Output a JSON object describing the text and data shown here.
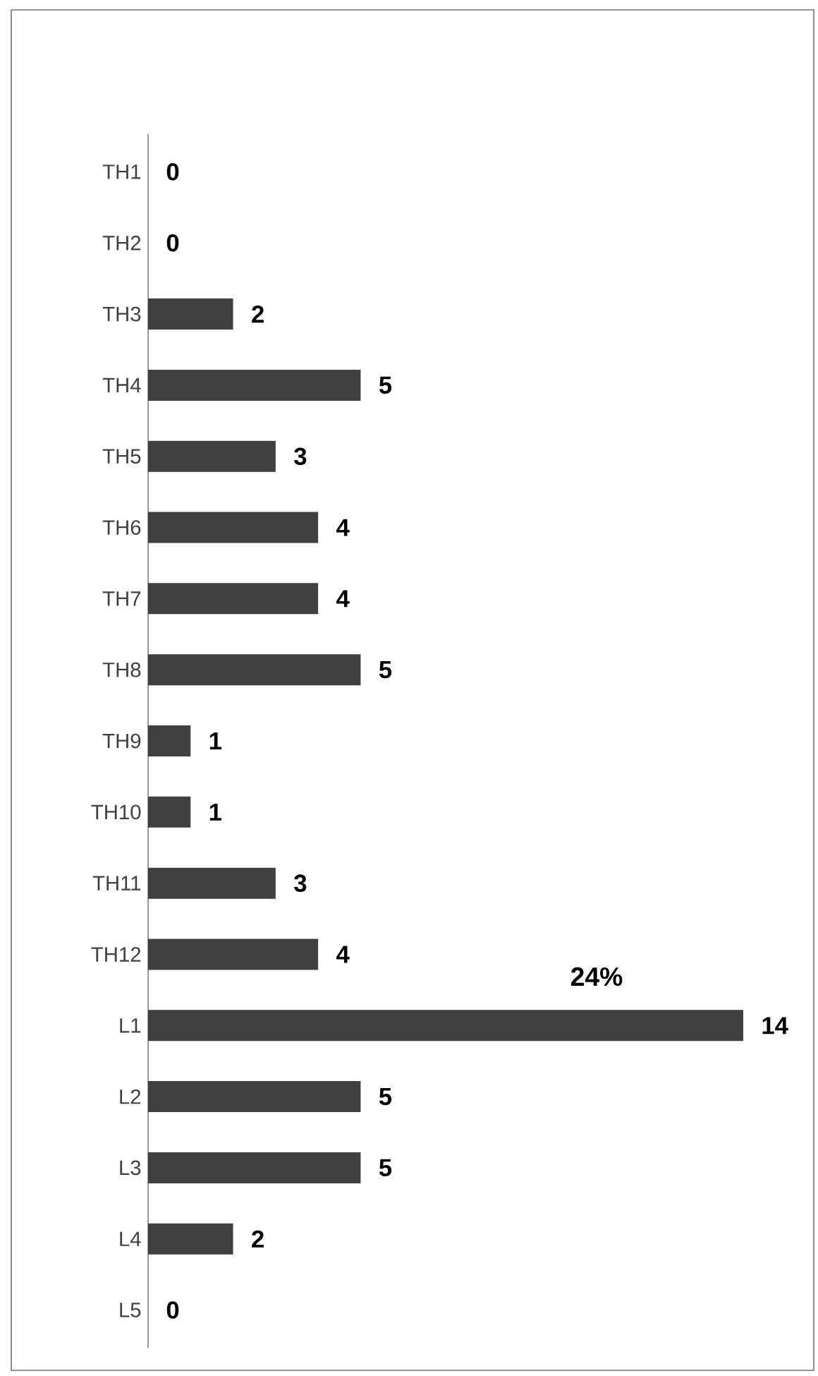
{
  "chart_data": {
    "type": "bar",
    "orientation": "horizontal",
    "categories": [
      "TH1",
      "TH2",
      "TH3",
      "TH4",
      "TH5",
      "TH6",
      "TH7",
      "TH8",
      "TH9",
      "TH10",
      "TH11",
      "TH12",
      "L1",
      "L2",
      "L3",
      "L4",
      "L5"
    ],
    "values": [
      0,
      0,
      2,
      5,
      3,
      4,
      4,
      5,
      1,
      1,
      3,
      4,
      14,
      5,
      5,
      2,
      0
    ],
    "color": "#404040",
    "data_labels": true,
    "tick_labels": "y",
    "annotations": [
      "24%"
    ]
  }
}
